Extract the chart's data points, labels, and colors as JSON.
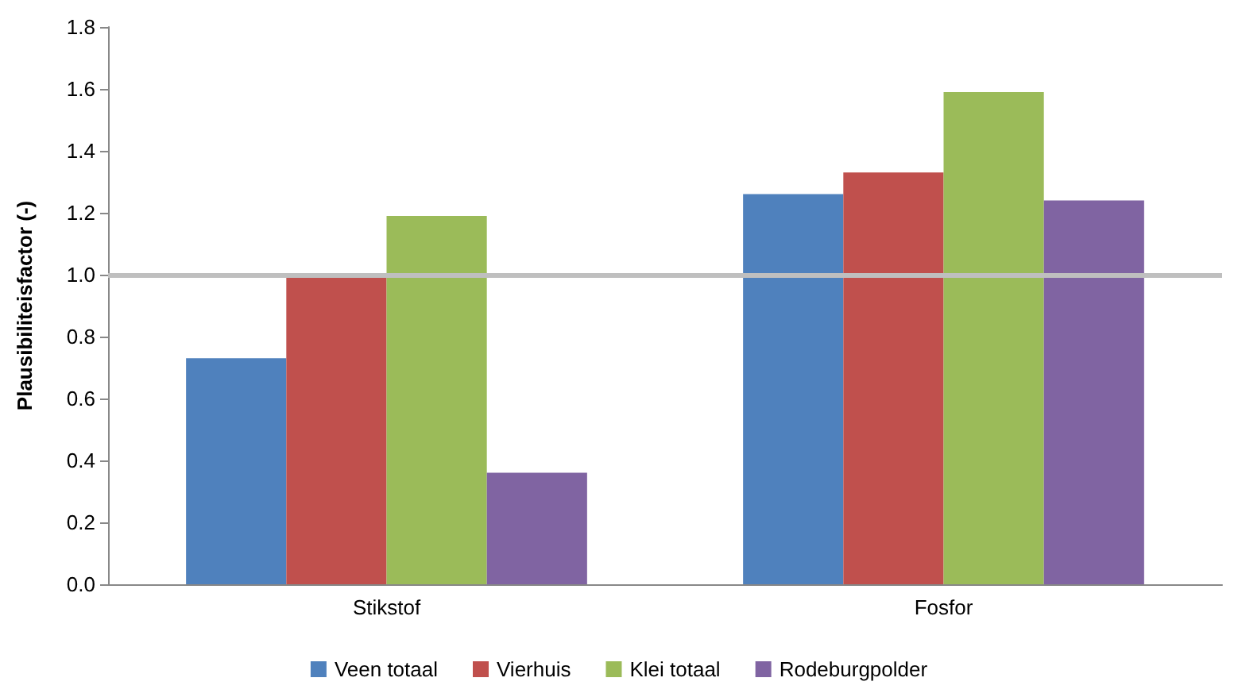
{
  "chart_data": {
    "type": "bar",
    "ylabel": "Plausibiliteisfactor (-)",
    "categories": [
      "Stikstof",
      "Fosfor"
    ],
    "series": [
      {
        "name": "Veen totaal",
        "color": "#4f81bd",
        "values": [
          0.73,
          1.26
        ]
      },
      {
        "name": "Vierhuis",
        "color": "#c0504d",
        "values": [
          0.99,
          1.33
        ]
      },
      {
        "name": "Klei totaal",
        "color": "#9bbb59",
        "values": [
          1.19,
          1.59
        ]
      },
      {
        "name": "Rodeburgpolder",
        "color": "#8064a2",
        "values": [
          0.36,
          1.24
        ]
      }
    ],
    "ylim": [
      0,
      1.8
    ],
    "yticks": [
      {
        "value": 0,
        "label": "0.0"
      },
      0.2,
      0.4,
      0.6,
      0.8,
      {
        "value": 1,
        "label": "1.0"
      },
      1.2,
      1.4,
      1.6,
      1.8
    ],
    "grid": false,
    "legend": "bottom",
    "ref_lines": [
      {
        "axis": "y",
        "value": 1,
        "color": "#bfbfbf"
      }
    ]
  }
}
